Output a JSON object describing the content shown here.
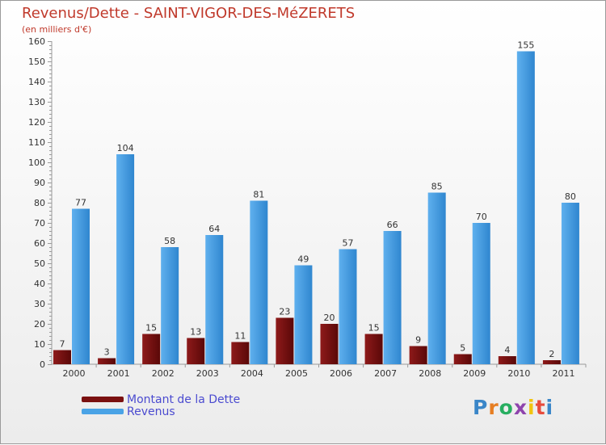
{
  "title": "Revenus/Dette - SAINT-VIGOR-DES-MéZERETS",
  "subtitle": "(en milliers d'€)",
  "colors": {
    "revenus": "#4aa3e6",
    "dette": "#7a1010",
    "title": "#c0392b",
    "legend_text": "#4b4bd0"
  },
  "logo": {
    "text": "Proxiti",
    "letters": [
      {
        "ch": "P",
        "color": "#3a86c8"
      },
      {
        "ch": "r",
        "color": "#e67e22"
      },
      {
        "ch": "o",
        "color": "#27ae60"
      },
      {
        "ch": "x",
        "color": "#8e44ad"
      },
      {
        "ch": "i",
        "color": "#f1c40f"
      },
      {
        "ch": "t",
        "color": "#e74c3c"
      },
      {
        "ch": "i",
        "color": "#3a86c8"
      }
    ]
  },
  "chart_data": {
    "type": "bar",
    "categories": [
      "2000",
      "2001",
      "2002",
      "2003",
      "2004",
      "2005",
      "2006",
      "2007",
      "2008",
      "2009",
      "2010",
      "2011"
    ],
    "series": [
      {
        "name": "Montant de la Dette",
        "values": [
          7,
          3,
          15,
          13,
          11,
          23,
          20,
          15,
          9,
          5,
          4,
          2
        ]
      },
      {
        "name": "Revenus",
        "values": [
          77,
          104,
          58,
          64,
          81,
          49,
          57,
          66,
          85,
          70,
          155,
          80
        ]
      }
    ],
    "ylim": [
      0,
      160
    ],
    "yticks": [
      0,
      10,
      20,
      30,
      40,
      50,
      60,
      70,
      80,
      90,
      100,
      110,
      120,
      130,
      140,
      150,
      160
    ],
    "grid": false,
    "legend": "bottom-left"
  }
}
